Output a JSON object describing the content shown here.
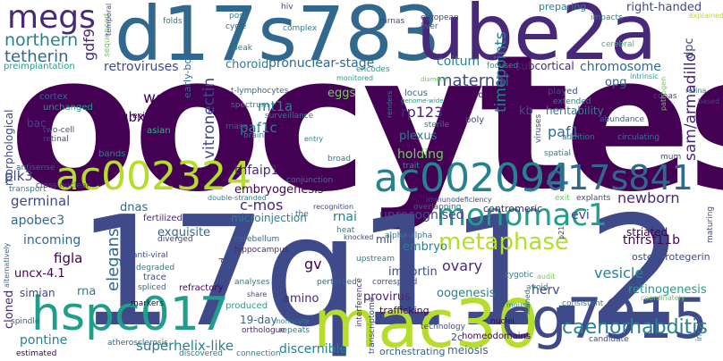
{
  "palette": {
    "dark_purple": "#440154",
    "purple": "#482878",
    "indigo": "#3e4a89",
    "blue": "#31688e",
    "teal": "#26828e",
    "green_teal": "#1f9e89",
    "green": "#35b779",
    "lime": "#6ece58",
    "yellow_green": "#b5de2b",
    "yellow": "#fde725"
  },
  "words": [
    "oocytes",
    "17q11.2",
    "d17s783",
    "ube2a",
    "mac30",
    "cg7915",
    "hspc017",
    "ac002094",
    "ac002324",
    "d17s841",
    "monomac1",
    "megs",
    "metaphase",
    "caenorhabditis",
    "maternal",
    "northern",
    "tetherin",
    "gdf9",
    "retroviruses",
    "vitronectin",
    "pronuclear-stage",
    "choroid",
    "subcortical",
    "chromosome",
    "timepoints",
    "sam/armadillo",
    "wee1",
    "mt1a",
    "paf1c",
    "paf1",
    "rp123",
    "gbx2",
    "elegans",
    "c-mos",
    "tnfaip1",
    "germinal",
    "plk3",
    "apobec3",
    "incoming",
    "unrecognised",
    "newborn",
    "sarm",
    "evi",
    "figla",
    "uncx-4.1",
    "rna",
    "simian",
    "pontine",
    "herv",
    "vesicle",
    "tnfrsf11b",
    "osteoprotegerin",
    "retinogenesis",
    "ovary",
    "importin",
    "oogenesis",
    "provirus",
    "gv",
    "superhelix-like",
    "19-day",
    "exquisite",
    "striated",
    "right-handed",
    "coitum",
    "rnai",
    "mll",
    "embryo",
    "kb",
    "dpc",
    "opg",
    "heritability",
    "embryogenesis",
    "holding",
    "plexus",
    "eggs",
    "dnas",
    "microinjection",
    "centromeric",
    "meiosis",
    "discernible",
    "amino",
    "stored",
    "cloned",
    "morphological",
    "bac",
    "cortex",
    "preimplantation",
    "unchanged",
    "two-cell",
    "retinal",
    "antisense",
    "transport",
    "cross-nuclear",
    "epidermis",
    "asian",
    "bands",
    "fertilized",
    "diverged",
    "anti-viral",
    "degraded",
    "trace",
    "spliced",
    "refractory",
    "cerebellum",
    "hippocampus",
    "heat",
    "knocked",
    "alpha-alpha",
    "orthologue",
    "markers",
    "produced",
    "monocyte",
    "repeats",
    "atherosclerosis",
    "estimated",
    "discovered",
    "connection",
    "transcriptome",
    "orchestrating",
    "homeodomains",
    "2c",
    "technology",
    "nuclei",
    "candidate",
    "innate",
    "maturing",
    "avoid",
    "zygotic",
    "audit",
    "consistent",
    "mouse",
    "named",
    "trafficking",
    "interference",
    "correspond",
    "perturbed",
    "upstream",
    "overlapping",
    "immunodeficiency",
    "recognition",
    "double-stranded",
    "exit",
    "explants",
    "p21",
    "alternatively",
    "spindle",
    "t-lymphocytes",
    "spectrum",
    "surveillance",
    "brain",
    "rnase",
    "entry",
    "broad",
    "conjunction",
    "trait",
    "renders",
    "sterile",
    "poly",
    "locus",
    "genome-wide",
    "acid",
    "played",
    "cdnas",
    "retina",
    "extended",
    "addition",
    "abundance",
    "circulating",
    "spatial",
    "viruses",
    "mum",
    "pathogen",
    "intrinsic",
    "based",
    "focused",
    "monitored",
    "encodes",
    "post",
    "cycle",
    "folds",
    "hiv",
    "sequenced",
    "complex",
    "mrnas",
    "european",
    "liver",
    "impacts",
    "explained",
    "cerebral",
    "temporal",
    "peak",
    "early-born",
    "preparing",
    "analyses",
    "share",
    "the",
    "coordinately",
    "diameter"
  ]
}
